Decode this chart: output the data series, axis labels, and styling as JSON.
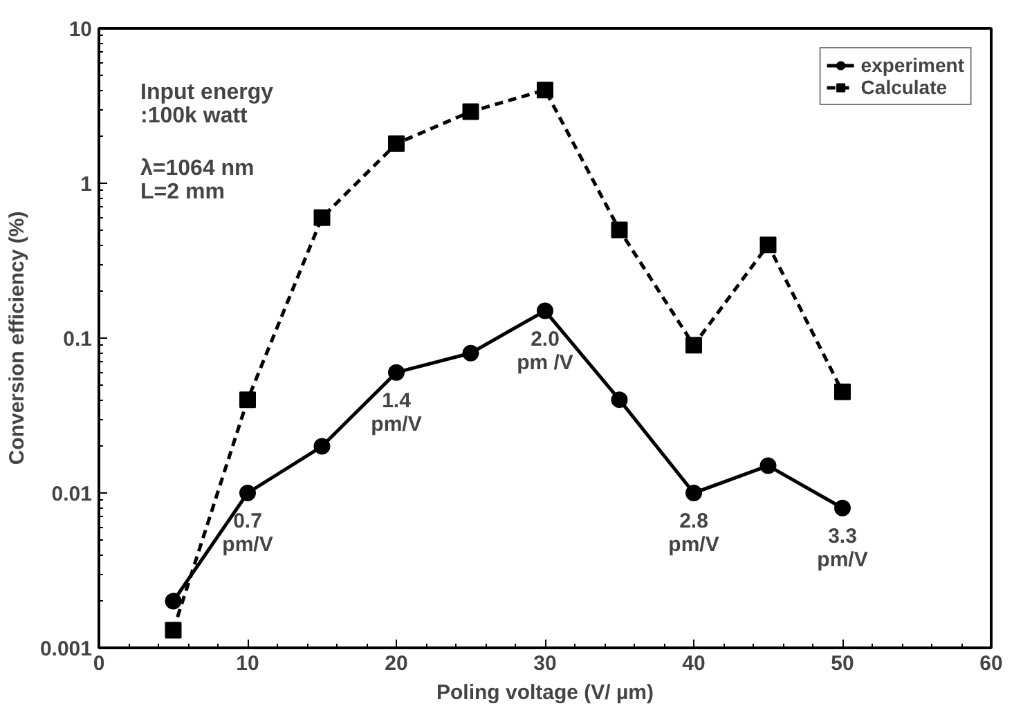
{
  "chart_data": {
    "type": "line",
    "xlabel": "Poling voltage (V/ µm)",
    "ylabel": "Conversion efficiency (%)",
    "x": [
      5,
      10,
      15,
      20,
      25,
      30,
      35,
      40,
      45,
      50
    ],
    "series": [
      {
        "name": "experiment",
        "color": "#000000",
        "values": [
          0.002,
          0.01,
          0.02,
          0.06,
          0.08,
          0.15,
          0.04,
          0.01,
          0.015,
          0.008
        ],
        "marker": "circle",
        "line_style": "solid"
      },
      {
        "name": "Calculate",
        "color": "#000000",
        "values": [
          0.0013,
          0.04,
          0.6,
          1.8,
          2.9,
          4,
          0.5,
          0.09,
          0.4,
          0.045
        ],
        "marker": "square",
        "line_style": "dashed"
      }
    ],
    "xlim": [
      0,
      60
    ],
    "ylim": [
      0.001,
      10
    ],
    "xticks": [
      0,
      10,
      20,
      30,
      40,
      50,
      60
    ],
    "yticks": [
      {
        "value": 0.001,
        "label": "0.001"
      },
      {
        "value": 0.01,
        "label": "0.01"
      },
      {
        "value": 0.1,
        "label": "0.1"
      },
      {
        "value": 1,
        "label": "1"
      },
      {
        "value": 10,
        "label": "10"
      }
    ],
    "log": "y",
    "grid": false,
    "legend": "top right",
    "annotations": [
      "Input energy\n:100k watt",
      "λ=1064 nm\nL=2 mm",
      {
        "text": "0.7\npm/V",
        "x": 10,
        "y": 0.01
      },
      {
        "text": "1.4\npm/V",
        "x": 20,
        "y": 0.06
      },
      {
        "text": "2.0\npm /V",
        "x": 30,
        "y": 0.15
      },
      {
        "text": "2.8\npm/V",
        "x": 40,
        "y": 0.01
      },
      {
        "text": "3.3\npm/V",
        "x": 50,
        "y": 0.008
      }
    ]
  }
}
